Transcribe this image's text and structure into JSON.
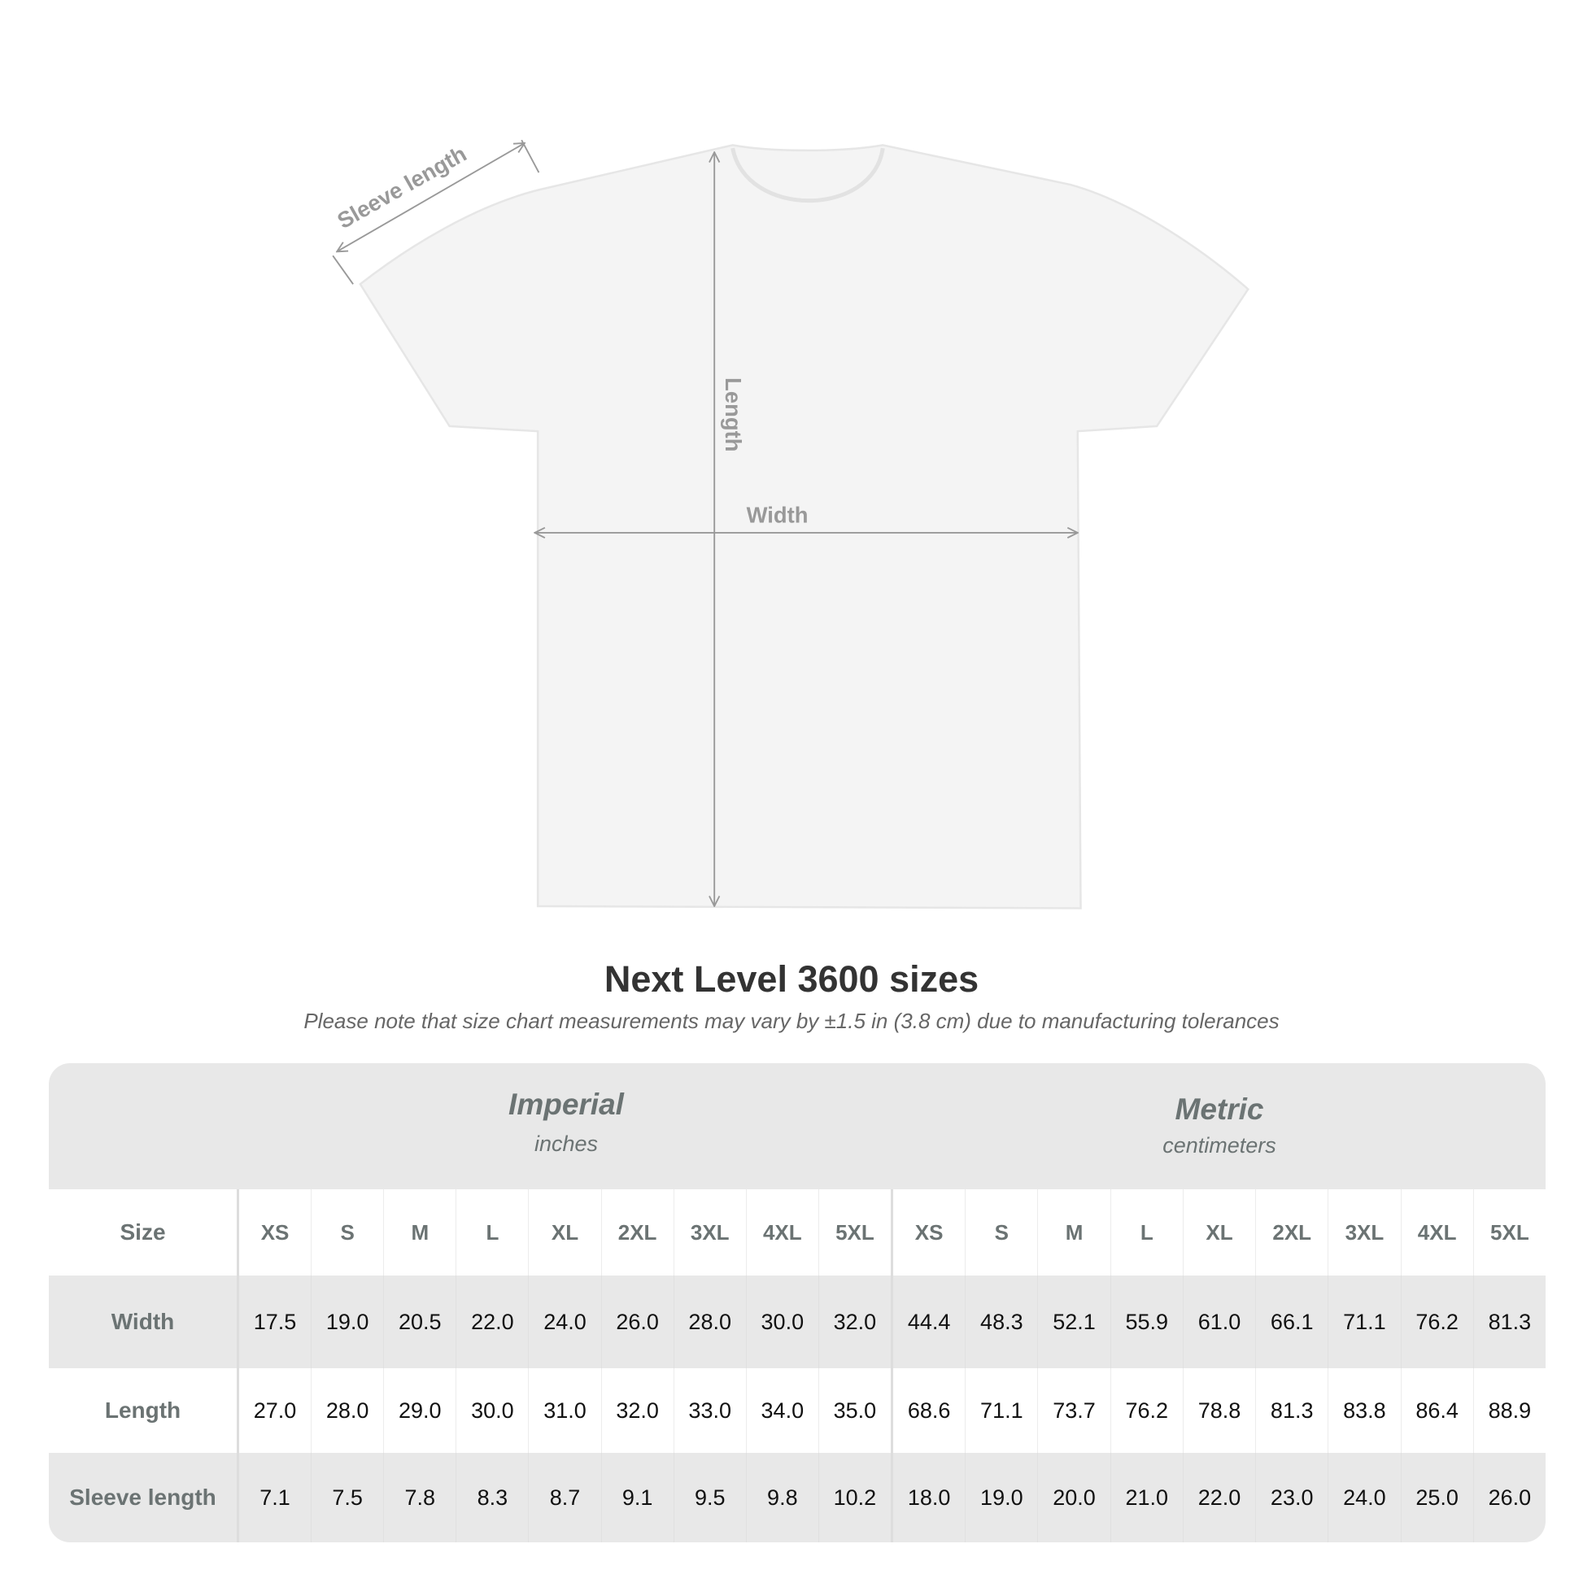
{
  "diagram": {
    "sleeve_label": "Sleeve length",
    "length_label": "Length",
    "width_label": "Width",
    "shirt_color": "#f4f4f4",
    "arrow_color": "#999999"
  },
  "title": "Next Level 3600 sizes",
  "subtitle": "Please note that size chart measurements may vary by ±1.5 in (3.8 cm) due to manufacturing tolerances",
  "table": {
    "imperial": {
      "name": "Imperial",
      "unit": "inches"
    },
    "metric": {
      "name": "Metric",
      "unit": "centimeters"
    },
    "size_label": "Size",
    "sizes": [
      "XS",
      "S",
      "M",
      "L",
      "XL",
      "2XL",
      "3XL",
      "4XL",
      "5XL"
    ],
    "rows": [
      {
        "label": "Width",
        "imperial": [
          "17.5",
          "19.0",
          "20.5",
          "22.0",
          "24.0",
          "26.0",
          "28.0",
          "30.0",
          "32.0"
        ],
        "metric": [
          "44.4",
          "48.3",
          "52.1",
          "55.9",
          "61.0",
          "66.1",
          "71.1",
          "76.2",
          "81.3"
        ]
      },
      {
        "label": "Length",
        "imperial": [
          "27.0",
          "28.0",
          "29.0",
          "30.0",
          "31.0",
          "32.0",
          "33.0",
          "34.0",
          "35.0"
        ],
        "metric": [
          "68.6",
          "71.1",
          "73.7",
          "76.2",
          "78.8",
          "81.3",
          "83.8",
          "86.4",
          "88.9"
        ]
      },
      {
        "label": "Sleeve length",
        "imperial": [
          "7.1",
          "7.5",
          "7.8",
          "8.3",
          "8.7",
          "9.1",
          "9.5",
          "9.8",
          "10.2"
        ],
        "metric": [
          "18.0",
          "19.0",
          "20.0",
          "21.0",
          "22.0",
          "23.0",
          "24.0",
          "25.0",
          "26.0"
        ]
      }
    ]
  }
}
